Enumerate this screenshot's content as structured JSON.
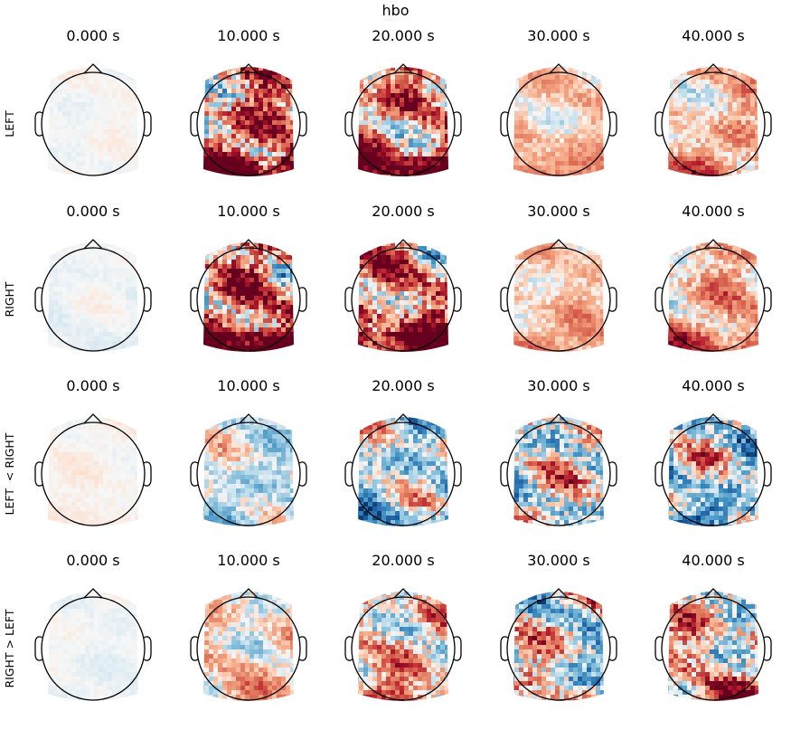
{
  "chart_data": {
    "type": "heatmap",
    "title": "hbo",
    "subtype": "topomap-grid",
    "colormap": "RdBu_r",
    "times": [
      "0.000 s",
      "10.000 s",
      "20.000 s",
      "30.000 s",
      "40.000 s"
    ],
    "rows": [
      {
        "label": "LEFT",
        "intensity": [
          0.12,
          0.95,
          0.85,
          0.45,
          0.55
        ],
        "bias": [
          0.0,
          0.55,
          0.5,
          0.3,
          0.3
        ]
      },
      {
        "label": "RIGHT",
        "intensity": [
          0.12,
          0.95,
          0.9,
          0.45,
          0.6
        ],
        "bias": [
          -0.05,
          0.55,
          0.55,
          0.3,
          0.35
        ]
      },
      {
        "label": "LEFT  < RIGHT",
        "intensity": [
          0.12,
          0.55,
          0.75,
          0.85,
          0.85
        ],
        "bias": [
          0.05,
          -0.15,
          -0.2,
          0.0,
          -0.2
        ]
      },
      {
        "label": "RIGHT > LEFT",
        "intensity": [
          0.12,
          0.55,
          0.75,
          0.85,
          0.85
        ],
        "bias": [
          -0.05,
          0.15,
          0.2,
          0.0,
          0.2
        ]
      }
    ]
  }
}
